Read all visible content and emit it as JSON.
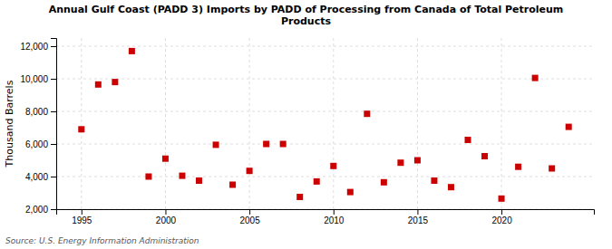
{
  "chart_data": {
    "type": "scatter",
    "title": "Annual Gulf Coast (PADD 3) Imports by PADD of Processing from Canada of Total Petroleum\nProducts",
    "y_label": "Thousand Barrels",
    "annotations": [
      "Source: U.S. Energy Information Administration"
    ],
    "x": [
      1995,
      1996,
      1997,
      1998,
      1999,
      2000,
      2001,
      2002,
      2003,
      2004,
      2005,
      2006,
      2007,
      2008,
      2009,
      2010,
      2011,
      2012,
      2013,
      2014,
      2015,
      2016,
      2017,
      2018,
      2019,
      2020,
      2021,
      2022,
      2023,
      2024
    ],
    "values": [
      6900,
      9650,
      9800,
      11700,
      4000,
      5100,
      4050,
      3750,
      5950,
      3500,
      4350,
      6000,
      6000,
      2750,
      3700,
      4650,
      3050,
      7850,
      3650,
      4850,
      5000,
      3750,
      3350,
      6250,
      5250,
      2650,
      4600,
      10050,
      4500,
      7050
    ],
    "color": "#cc0000",
    "marker": "square",
    "xlim": [
      1993.5,
      2025.5
    ],
    "ylim": [
      2000,
      12500
    ],
    "xticks": [
      1995,
      2000,
      2005,
      2010,
      2015,
      2020
    ],
    "yticks": [
      {
        "value": 2000,
        "label": "2,000"
      },
      {
        "value": 4000,
        "label": "4,000"
      },
      {
        "value": 6000,
        "label": "6,000"
      },
      {
        "value": 8000,
        "label": "8,000"
      },
      {
        "value": 10000,
        "label": "10,000"
      },
      {
        "value": 12000,
        "label": "12,000"
      }
    ],
    "grid": true
  }
}
